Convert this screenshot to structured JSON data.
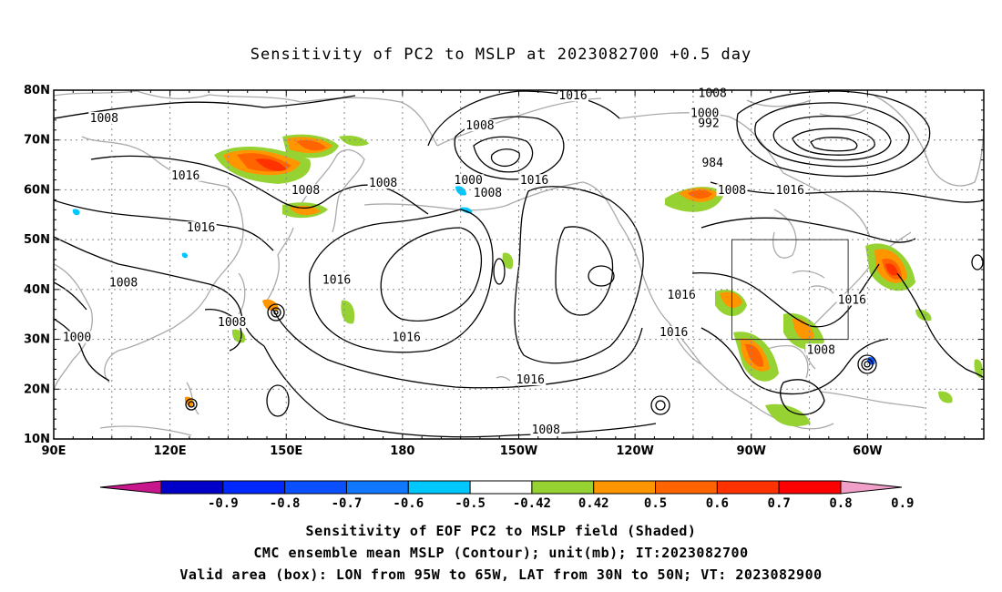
{
  "title": "Sensitivity of PC2 to MSLP at 2023082700 +0.5 day",
  "axes": {
    "lat_labels": [
      "80N",
      "70N",
      "60N",
      "50N",
      "40N",
      "30N",
      "20N",
      "10N"
    ],
    "lon_labels": [
      "90E",
      "120E",
      "150E",
      "180",
      "150W",
      "120W",
      "90W",
      "60W"
    ],
    "lon_range": [
      90,
      330
    ],
    "lat_range": [
      10,
      80
    ]
  },
  "contour_labels": [
    {
      "text": "1008",
      "lon": 103,
      "lat": 74
    },
    {
      "text": "1016",
      "lon": 124,
      "lat": 62.5
    },
    {
      "text": "1016",
      "lon": 128,
      "lat": 52
    },
    {
      "text": "1008",
      "lon": 108,
      "lat": 41
    },
    {
      "text": "1000",
      "lon": 96,
      "lat": 30
    },
    {
      "text": "1008",
      "lon": 136,
      "lat": 33
    },
    {
      "text": "1008",
      "lon": 155,
      "lat": 59.5
    },
    {
      "text": "1016",
      "lon": 163,
      "lat": 41.5
    },
    {
      "text": "1008",
      "lon": 175,
      "lat": 61
    },
    {
      "text": "1008",
      "lon": 200,
      "lat": 72.5
    },
    {
      "text": "1016",
      "lon": 224,
      "lat": 78.5
    },
    {
      "text": "1000",
      "lon": 197,
      "lat": 61.5
    },
    {
      "text": "1008",
      "lon": 202,
      "lat": 59
    },
    {
      "text": "1016",
      "lon": 214,
      "lat": 61.5
    },
    {
      "text": "1016",
      "lon": 181,
      "lat": 30
    },
    {
      "text": "1016",
      "lon": 213,
      "lat": 21.5
    },
    {
      "text": "1008",
      "lon": 217,
      "lat": 11.5
    },
    {
      "text": "1008",
      "lon": 260,
      "lat": 79
    },
    {
      "text": "1000",
      "lon": 258,
      "lat": 75
    },
    {
      "text": "992",
      "lon": 259,
      "lat": 73
    },
    {
      "text": "984",
      "lon": 260,
      "lat": 65
    },
    {
      "text": "1008",
      "lon": 265,
      "lat": 59.5
    },
    {
      "text": "1016",
      "lon": 280,
      "lat": 59.5
    },
    {
      "text": "1016",
      "lon": 252,
      "lat": 38.5
    },
    {
      "text": "1016",
      "lon": 250,
      "lat": 31
    },
    {
      "text": "1008",
      "lon": 288,
      "lat": 27.5
    },
    {
      "text": "1016",
      "lon": 296,
      "lat": 37.5
    }
  ],
  "valid_box": {
    "lon": [
      265,
      295
    ],
    "lat": [
      30,
      50
    ]
  },
  "colorbar": {
    "labels": [
      "-0.9",
      "-0.8",
      "-0.7",
      "-0.6",
      "-0.5",
      "-0.42",
      "0.42",
      "0.5",
      "0.6",
      "0.7",
      "0.8",
      "0.9"
    ],
    "colors": [
      "#c8168c",
      "#0000c8",
      "#0028ff",
      "#0a50ff",
      "#0f78ff",
      "#00c8ff",
      "#ffffff",
      "#96d232",
      "#ff9600",
      "#ff6400",
      "#ff3200",
      "#ff0000",
      "#f0a0c8"
    ]
  },
  "captions": [
    "Sensitivity of EOF PC2 to MSLP field (Shaded)",
    "CMC ensemble mean MSLP (Contour); unit(mb); IT:2023082700",
    "Valid area (box): LON from 95W to 65W, LAT from 30N to 50N; VT: 2023082900"
  ]
}
